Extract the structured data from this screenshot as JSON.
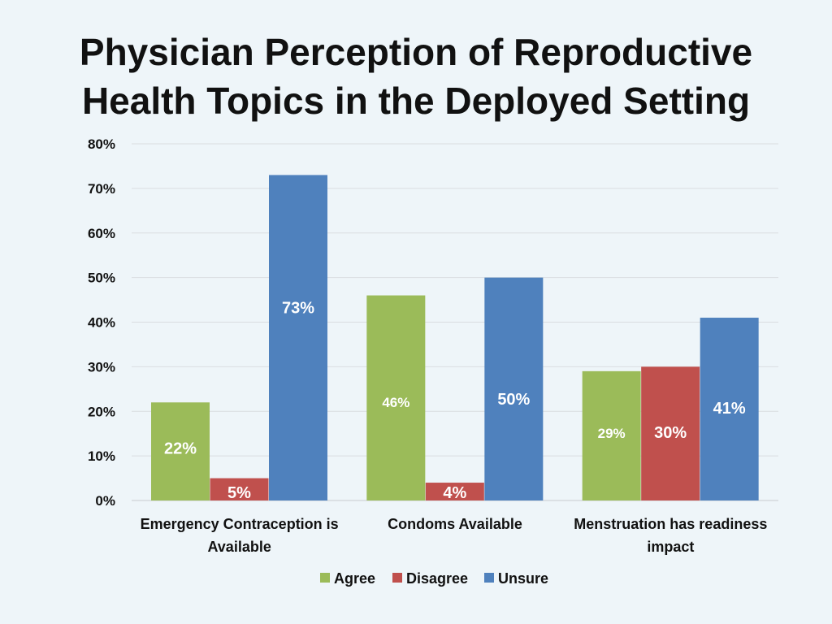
{
  "chart_data": {
    "type": "bar",
    "title_line1": "Physician Perception of Reproductive",
    "title_line2": "Health Topics in the Deployed Setting",
    "categories": [
      [
        "Emergency Contraception is",
        "Available"
      ],
      [
        "Condoms Available"
      ],
      [
        "Menstruation has readiness",
        "impact"
      ]
    ],
    "series": [
      {
        "name": "Agree",
        "color": "#9bbb59",
        "values": [
          22,
          46,
          29
        ],
        "labels": [
          "22%",
          "46%",
          "29%"
        ]
      },
      {
        "name": "Disagree",
        "color": "#c0504d",
        "values": [
          5,
          4,
          30
        ],
        "labels": [
          "5%",
          "4%",
          "30%"
        ]
      },
      {
        "name": "Unsure",
        "color": "#4f81bd",
        "values": [
          73,
          50,
          41
        ],
        "labels": [
          "73%",
          "50%",
          "41%"
        ]
      }
    ],
    "yticks": [
      "0%",
      "10%",
      "20%",
      "30%",
      "40%",
      "50%",
      "60%",
      "70%",
      "80%"
    ],
    "ylim": [
      0,
      80
    ],
    "grid": true,
    "legend": "bottom"
  }
}
